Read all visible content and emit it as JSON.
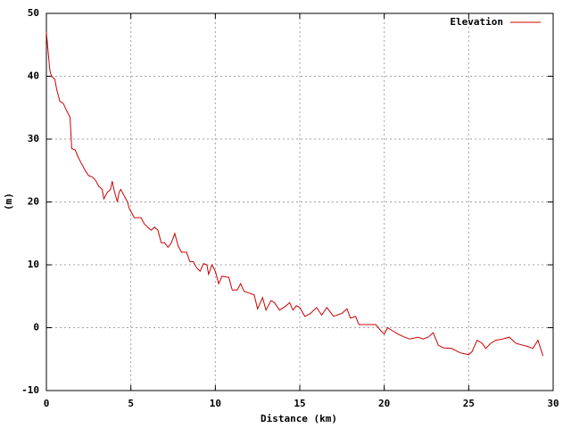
{
  "chart_data": {
    "type": "line",
    "x_label": "Distance (km)",
    "y_label": "(m)",
    "x": [
      0,
      0.1,
      0.2,
      0.3,
      0.5,
      0.6,
      0.8,
      1.0,
      1.2,
      1.4,
      1.5,
      1.7,
      1.9,
      2.1,
      2.3,
      2.5,
      2.7,
      2.9,
      3.1,
      3.3,
      3.4,
      3.6,
      3.8,
      3.9,
      4.0,
      4.2,
      4.3,
      4.4,
      4.6,
      4.8,
      4.9,
      5.0,
      5.2,
      5.6,
      5.8,
      6.0,
      6.2,
      6.4,
      6.6,
      6.8,
      7.0,
      7.2,
      7.4,
      7.6,
      7.8,
      8.0,
      8.3,
      8.5,
      8.7,
      8.9,
      9.1,
      9.3,
      9.5,
      9.6,
      9.8,
      10.0,
      10.2,
      10.4,
      10.8,
      11.0,
      11.3,
      11.5,
      11.7,
      12.0,
      12.3,
      12.5,
      12.8,
      13.0,
      13.3,
      13.5,
      13.8,
      14.2,
      14.4,
      14.6,
      14.8,
      15.0,
      15.3,
      15.6,
      16.0,
      16.3,
      16.6,
      17.0,
      17.5,
      17.8,
      18.0,
      18.3,
      18.5,
      19.0,
      19.5,
      19.8,
      20.0,
      20.2,
      20.5,
      20.8,
      21.2,
      21.5,
      22.0,
      22.3,
      22.6,
      22.9,
      23.2,
      23.5,
      24.0,
      24.5,
      25.0,
      25.2,
      25.5,
      25.8,
      26.0,
      26.3,
      26.6,
      27.0,
      27.4,
      27.8,
      28.5,
      28.8,
      29.1,
      29.4
    ],
    "series": [
      {
        "name": "Elevation",
        "color": "#cc0000",
        "values": [
          47,
          44,
          41,
          40,
          39.5,
          38,
          36,
          35.7,
          34.5,
          33.5,
          28.5,
          28.3,
          27,
          26,
          25,
          24.2,
          24,
          23.5,
          22.5,
          22,
          20.5,
          21.5,
          22,
          23.3,
          22,
          20,
          21.5,
          22,
          21,
          20,
          19,
          18.5,
          17.5,
          17.5,
          16.5,
          16,
          15.5,
          16,
          15.5,
          13.5,
          13.5,
          12.8,
          13.5,
          15,
          13,
          12,
          12,
          10.5,
          10.5,
          9.5,
          9,
          10.2,
          10,
          8.5,
          10,
          9,
          7,
          8.2,
          8,
          6,
          6,
          7,
          5.8,
          5.5,
          5.2,
          3,
          4.8,
          2.8,
          4.3,
          4,
          2.8,
          3.5,
          4,
          2.8,
          3.5,
          3.2,
          1.8,
          2.2,
          3.2,
          2,
          3.2,
          1.8,
          2.3,
          3,
          1.5,
          1.8,
          0.5,
          0.5,
          0.5,
          -0.5,
          -1,
          0,
          -0.5,
          -1,
          -1.5,
          -1.8,
          -1.5,
          -1.8,
          -1.5,
          -0.8,
          -2.8,
          -3.2,
          -3.3,
          -4,
          -4.3,
          -3.8,
          -2,
          -2.5,
          -3.3,
          -2.5,
          -2,
          -1.8,
          -1.5,
          -2.5,
          -3,
          -3.3,
          -2,
          -4.5
        ]
      }
    ],
    "xlim": [
      0,
      30
    ],
    "ylim": [
      -10,
      50
    ],
    "xticks": [
      0,
      5,
      10,
      15,
      20,
      25,
      30
    ],
    "yticks": [
      -10,
      0,
      10,
      20,
      30,
      40,
      50
    ],
    "grid": true,
    "legend": "top right"
  }
}
